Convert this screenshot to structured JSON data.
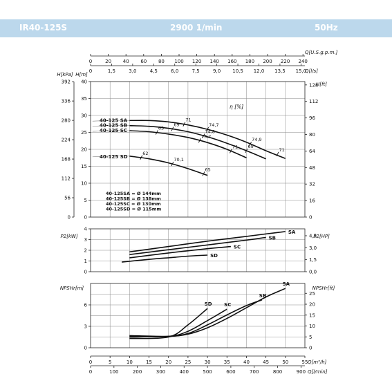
{
  "header": {
    "model": "IR40-125S",
    "speed": "2900 1/min",
    "frequency": "50Hz"
  },
  "axes": {
    "top_us_label": "Q[U.S.g.p.m.]",
    "top_us_ticks": [
      0,
      20,
      40,
      60,
      80,
      100,
      120,
      140,
      160,
      180,
      200,
      220,
      240
    ],
    "top_ls_label": "Q[l/s]",
    "top_ls_ticks": [
      "0",
      "1,5",
      "3,0",
      "4,5",
      "6,0",
      "7,5",
      "9,0",
      "10,5",
      "12,0",
      "13,5",
      "15,0"
    ],
    "bottom_m3h_label": "Q[m³/h]",
    "bottom_m3h_ticks": [
      0,
      5,
      10,
      15,
      20,
      25,
      30,
      35,
      40,
      45,
      50,
      55
    ],
    "bottom_lmin_label": "Q[l/min]",
    "bottom_lmin_ticks": [
      0,
      100,
      200,
      300,
      400,
      500,
      600,
      700,
      800,
      900
    ],
    "head_kpa_label": "H[kPa]",
    "head_kpa_ticks": [
      0,
      56,
      112,
      168,
      224,
      280,
      336,
      392
    ],
    "head_m_label": "H[m]",
    "head_m_ticks": [
      0,
      5,
      10,
      15,
      20,
      25,
      30,
      35,
      40
    ],
    "head_ft_label": "H[ft]",
    "head_ft_ticks": [
      0,
      16,
      32,
      48,
      64,
      80,
      96,
      112,
      128
    ],
    "power_kw_label": "P2[kW]",
    "power_kw_ticks": [
      0,
      1,
      2,
      3,
      4
    ],
    "power_hp_label": "P2[HP]",
    "power_hp_ticks": [
      "0,0",
      "1,5",
      "3,0",
      "4,5"
    ],
    "npsh_m_label": "NPSHr[m]",
    "npsh_m_ticks": [
      0,
      3,
      6
    ],
    "npsh_ft_label": "NPSHr[ft]",
    "npsh_ft_ticks": [
      0,
      5,
      10,
      15,
      20,
      25
    ]
  },
  "efficiency_label": "η [%]",
  "impeller_notes": [
    "40-125SA = Ø 144mm",
    "40-125SB = Ø 138mm",
    "40-125SC = Ø 130mm",
    "40-125SD = Ø 115mm"
  ],
  "chart_data": [
    {
      "type": "line",
      "name": "head",
      "xlabel": "Q[m³/h]",
      "ylabel": "H[m]",
      "xlim": [
        0,
        55
      ],
      "ylim": [
        0,
        40
      ],
      "series": [
        {
          "name": "40-125 SA",
          "x": [
            10,
            15,
            20,
            25,
            30,
            35,
            40,
            45,
            50
          ],
          "y": [
            28.5,
            28.5,
            28.1,
            27.2,
            25.9,
            24.2,
            22.1,
            19.6,
            17.3
          ],
          "efficiency": [
            {
              "x": 24,
              "y": 27.4,
              "label": "71"
            },
            {
              "x": 30,
              "y": 25.9,
              "label": "74,7"
            },
            {
              "x": 41,
              "y": 21.6,
              "label": "74,9"
            },
            {
              "x": 48,
              "y": 18.6,
              "label": "71"
            }
          ]
        },
        {
          "name": "40-125 SB",
          "x": [
            10,
            15,
            20,
            25,
            30,
            35,
            40,
            45
          ],
          "y": [
            27.0,
            26.8,
            26.2,
            25.2,
            23.7,
            21.8,
            19.6,
            17.2
          ],
          "efficiency": [
            {
              "x": 21,
              "y": 26.0,
              "label": "69"
            },
            {
              "x": 29,
              "y": 24.0,
              "label": "74,8"
            },
            {
              "x": 40,
              "y": 19.6,
              "label": "69"
            }
          ]
        },
        {
          "name": "40-125 SC",
          "x": [
            10,
            15,
            20,
            25,
            30,
            35,
            40
          ],
          "y": [
            25.5,
            25.2,
            24.5,
            23.5,
            22.0,
            20.0,
            17.5
          ],
          "efficiency": [
            {
              "x": 17,
              "y": 25.0,
              "label": "65"
            },
            {
              "x": 28,
              "y": 22.6,
              "label": "73,2"
            },
            {
              "x": 36,
              "y": 19.5,
              "label": "71"
            }
          ]
        },
        {
          "name": "40-125 SD",
          "x": [
            10,
            15,
            20,
            25,
            30
          ],
          "y": [
            18.0,
            17.2,
            16.0,
            14.3,
            12.3
          ],
          "efficiency": [
            {
              "x": 13,
              "y": 17.6,
              "label": "62"
            },
            {
              "x": 21,
              "y": 15.7,
              "label": "70,1"
            },
            {
              "x": 29,
              "y": 12.8,
              "label": "65"
            }
          ]
        }
      ]
    },
    {
      "type": "line",
      "name": "power",
      "xlabel": "Q[m³/h]",
      "ylabel": "P2[kW]",
      "xlim": [
        0,
        55
      ],
      "ylim": [
        0,
        4
      ],
      "series": [
        {
          "name": "SA",
          "x": [
            10,
            20,
            30,
            40,
            50
          ],
          "y": [
            1.85,
            2.35,
            2.85,
            3.3,
            3.75
          ]
        },
        {
          "name": "SB",
          "x": [
            10,
            20,
            30,
            40,
            45
          ],
          "y": [
            1.6,
            2.05,
            2.5,
            2.95,
            3.2
          ]
        },
        {
          "name": "SC",
          "x": [
            10,
            20,
            30,
            36
          ],
          "y": [
            1.3,
            1.75,
            2.15,
            2.35
          ]
        },
        {
          "name": "SD",
          "x": [
            8,
            15,
            20,
            25,
            30
          ],
          "y": [
            0.9,
            1.15,
            1.3,
            1.45,
            1.55
          ]
        }
      ]
    },
    {
      "type": "line",
      "name": "npsh",
      "xlabel": "Q[m³/h]",
      "ylabel": "NPSHr[m]",
      "xlim": [
        0,
        55
      ],
      "ylim": [
        0,
        9
      ],
      "series": [
        {
          "name": "SA",
          "x": [
            10,
            20,
            25,
            30,
            35,
            40,
            45,
            50
          ],
          "y": [
            1.5,
            1.6,
            1.9,
            2.8,
            4.1,
            5.6,
            7.1,
            8.3
          ]
        },
        {
          "name": "SB",
          "x": [
            10,
            20,
            25,
            30,
            35,
            40,
            44
          ],
          "y": [
            1.7,
            1.6,
            2.0,
            3.2,
            4.6,
            5.9,
            6.7
          ]
        },
        {
          "name": "SC",
          "x": [
            10,
            20,
            25,
            30,
            35
          ],
          "y": [
            1.6,
            1.6,
            2.3,
            3.8,
            5.4
          ]
        },
        {
          "name": "SD",
          "x": [
            10,
            20,
            25,
            30
          ],
          "y": [
            1.3,
            1.5,
            3.2,
            5.5
          ]
        }
      ]
    }
  ]
}
